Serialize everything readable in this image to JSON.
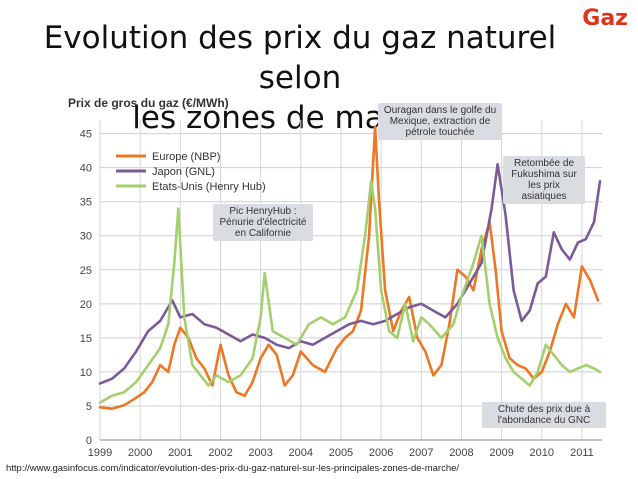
{
  "page": {
    "title_line1": "Evolution des prix du gaz naturel selon",
    "title_line2": "les zones de marchés",
    "brand": "Gaz",
    "source": "http://www.gasinfocus.com/indicator/evolution-des-prix-du-gaz-naturel-sur-les-principales-zones-de-marche/"
  },
  "chart_data": {
    "type": "line",
    "title": "",
    "ylabel": "Prix de gros du gaz (€/MWh)",
    "xlabel": "",
    "ylim": [
      0,
      47
    ],
    "xlim": [
      1999,
      2011.5
    ],
    "yticks": [
      0,
      5,
      10,
      15,
      20,
      25,
      30,
      35,
      40,
      45
    ],
    "xticks": [
      1999,
      2000,
      2001,
      2002,
      2003,
      2004,
      2005,
      2006,
      2007,
      2008,
      2009,
      2010,
      2011
    ],
    "grid": true,
    "legend_position": "top-left",
    "series": [
      {
        "name": "Europe (NBP)",
        "color": "#ed7722",
        "x": [
          1999.0,
          1999.3,
          1999.6,
          1999.9,
          2000.1,
          2000.3,
          2000.5,
          2000.7,
          2000.85,
          2001.0,
          2001.2,
          2001.4,
          2001.6,
          2001.8,
          2002.0,
          2002.2,
          2002.4,
          2002.6,
          2002.8,
          2003.0,
          2003.2,
          2003.4,
          2003.6,
          2003.8,
          2004.0,
          2004.3,
          2004.6,
          2004.9,
          2005.1,
          2005.3,
          2005.5,
          2005.7,
          2005.85,
          2005.95,
          2006.1,
          2006.3,
          2006.5,
          2006.7,
          2006.9,
          2007.1,
          2007.3,
          2007.5,
          2007.7,
          2007.9,
          2008.1,
          2008.3,
          2008.5,
          2008.7,
          2008.85,
          2009.0,
          2009.2,
          2009.4,
          2009.6,
          2009.8,
          2010.0,
          2010.2,
          2010.4,
          2010.6,
          2010.8,
          2011.0,
          2011.2,
          2011.4
        ],
        "values": [
          4.8,
          4.6,
          5.1,
          6.2,
          7.0,
          8.5,
          11.0,
          10.0,
          14.0,
          16.5,
          15.0,
          12.0,
          10.5,
          8.0,
          14.0,
          9.5,
          7.0,
          6.5,
          8.5,
          12.0,
          14.0,
          12.5,
          8.0,
          9.5,
          13.0,
          11.0,
          10.0,
          13.5,
          15.0,
          16.0,
          19.0,
          30.0,
          46.0,
          35.0,
          22.0,
          16.0,
          19.0,
          21.0,
          15.0,
          13.0,
          9.5,
          11.0,
          17.0,
          25.0,
          24.0,
          22.0,
          28.0,
          32.0,
          25.0,
          16.0,
          12.0,
          11.0,
          10.5,
          9.0,
          10.0,
          13.0,
          17.0,
          20.0,
          18.0,
          25.5,
          23.5,
          20.5
        ]
      },
      {
        "name": "Japon (GNL)",
        "color": "#7b5b97",
        "x": [
          1999.0,
          1999.3,
          1999.6,
          1999.9,
          2000.2,
          2000.5,
          2000.8,
          2001.0,
          2001.3,
          2001.6,
          2001.9,
          2002.2,
          2002.5,
          2002.8,
          2003.1,
          2003.4,
          2003.7,
          2004.0,
          2004.3,
          2004.6,
          2004.9,
          2005.2,
          2005.5,
          2005.8,
          2006.1,
          2006.4,
          2006.7,
          2007.0,
          2007.3,
          2007.6,
          2007.9,
          2008.2,
          2008.5,
          2008.75,
          2008.9,
          2009.1,
          2009.3,
          2009.5,
          2009.7,
          2009.9,
          2010.1,
          2010.3,
          2010.5,
          2010.7,
          2010.9,
          2011.1,
          2011.3,
          2011.45
        ],
        "values": [
          8.3,
          9.0,
          10.5,
          13.0,
          16.0,
          17.5,
          20.5,
          18.0,
          18.5,
          17.0,
          16.5,
          15.5,
          14.5,
          15.5,
          15.0,
          14.0,
          13.5,
          14.5,
          14.0,
          15.0,
          16.0,
          17.0,
          17.5,
          17.0,
          17.5,
          18.5,
          19.5,
          20.0,
          19.0,
          18.0,
          20.0,
          23.0,
          26.0,
          34.0,
          40.5,
          33.0,
          22.0,
          17.5,
          19.0,
          23.0,
          24.0,
          30.5,
          28.0,
          26.5,
          29.0,
          29.5,
          32.0,
          38.0
        ]
      },
      {
        "name": "Etats-Unis (Henry Hub)",
        "color": "#a4cf6e",
        "x": [
          1999.0,
          1999.3,
          1999.6,
          1999.9,
          2000.2,
          2000.5,
          2000.7,
          2000.85,
          2000.95,
          2001.1,
          2001.3,
          2001.5,
          2001.7,
          2001.9,
          2002.2,
          2002.5,
          2002.8,
          2003.0,
          2003.1,
          2003.3,
          2003.6,
          2003.9,
          2004.2,
          2004.5,
          2004.8,
          2005.1,
          2005.4,
          2005.6,
          2005.75,
          2005.85,
          2006.0,
          2006.2,
          2006.4,
          2006.6,
          2006.8,
          2007.0,
          2007.2,
          2007.5,
          2007.8,
          2008.0,
          2008.3,
          2008.5,
          2008.7,
          2008.9,
          2009.1,
          2009.3,
          2009.5,
          2009.7,
          2009.9,
          2010.1,
          2010.3,
          2010.5,
          2010.7,
          2010.9,
          2011.1,
          2011.3,
          2011.45
        ],
        "values": [
          5.5,
          6.5,
          7.0,
          8.5,
          11.0,
          13.5,
          17.0,
          26.0,
          34.0,
          18.0,
          11.0,
          9.5,
          8.0,
          9.5,
          8.5,
          9.5,
          12.0,
          18.0,
          24.5,
          16.0,
          15.0,
          14.0,
          17.0,
          18.0,
          17.0,
          18.0,
          22.0,
          30.0,
          38.0,
          34.0,
          22.0,
          16.0,
          15.0,
          20.0,
          14.5,
          18.0,
          17.0,
          15.0,
          17.0,
          21.0,
          26.0,
          30.0,
          20.0,
          15.0,
          12.0,
          10.0,
          9.0,
          8.0,
          10.0,
          14.0,
          12.5,
          11.0,
          10.0,
          10.5,
          11.0,
          10.5,
          10.0
        ]
      }
    ],
    "annotations": [
      {
        "text": "Ouragan dans le golfe du Mexique, extraction de pétrole touchée"
      },
      {
        "text": "Retombée de Fukushima sur les prix asiatiques"
      },
      {
        "text": "Pic HenryHub : Pénurie d'électricité en Californie"
      },
      {
        "text": "Chute des prix due à l'abondance du GNC"
      }
    ]
  }
}
